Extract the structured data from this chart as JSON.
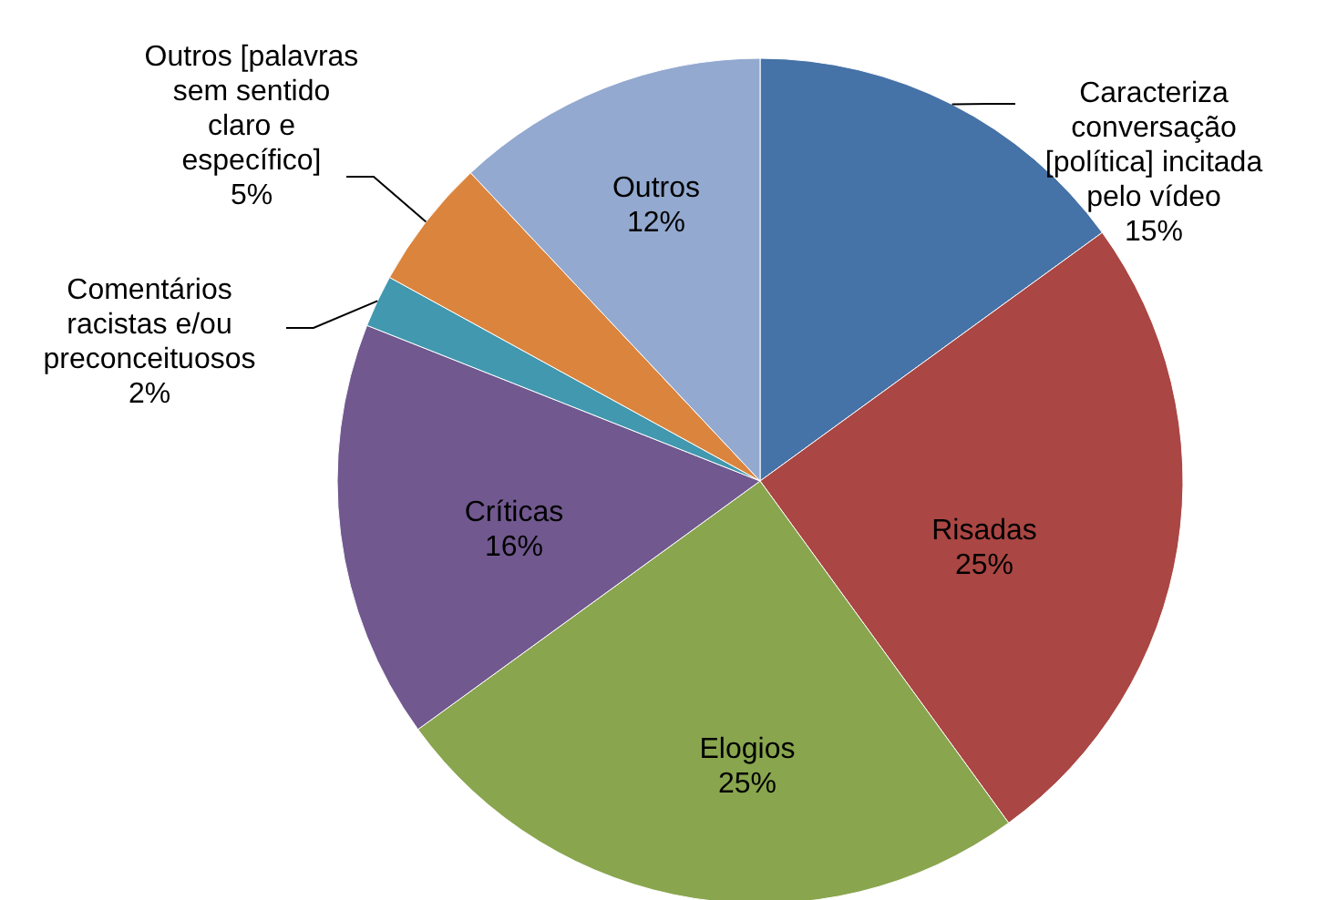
{
  "chart_data": {
    "type": "pie",
    "categories": [
      "Caracteriza conversação [política] incitada pelo vídeo",
      "Risadas",
      "Elogios",
      "Críticas",
      "Comentários racistas e/ou preconceituosos",
      "Outros [palavras sem sentido claro e específico]",
      "Outros"
    ],
    "values": [
      15,
      25,
      25,
      16,
      2,
      5,
      12
    ],
    "colors": [
      "#4572a7",
      "#aa4643",
      "#89a54e",
      "#71588f",
      "#4198af",
      "#db843d",
      "#93a9cf"
    ],
    "value_labels": [
      "15%",
      "25%",
      "25%",
      "16%",
      "2%",
      "5%",
      "12%"
    ]
  }
}
